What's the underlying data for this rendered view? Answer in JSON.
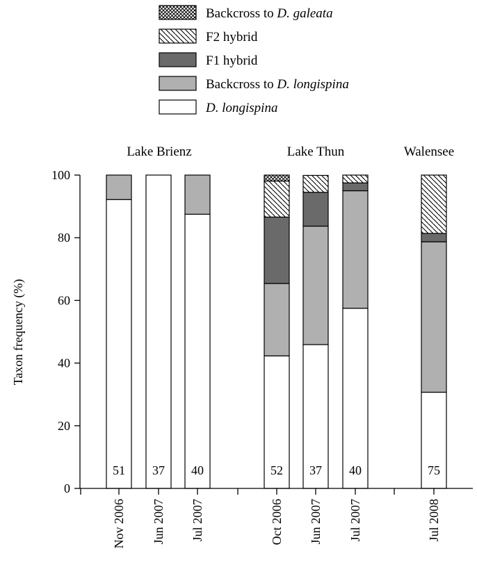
{
  "chart_data": {
    "type": "bar",
    "stacked": true,
    "title": "",
    "xlabel": "",
    "ylabel": "Taxon frequency (%)",
    "ylim": [
      0,
      100
    ],
    "yticks": [
      0,
      20,
      40,
      60,
      80,
      100
    ],
    "grid": false,
    "legend_position": "top",
    "group_labels": [
      "Lake Brienz",
      "Lake Thun",
      "Walensee"
    ],
    "categories": [
      "Nov 2006",
      "Jun 2007",
      "Jul 2007",
      "Oct 2006",
      "Jun 2007",
      "Jul 2007",
      "Jul 2008"
    ],
    "category_groups": [
      0,
      0,
      0,
      1,
      1,
      1,
      2
    ],
    "sample_sizes": [
      "51",
      "37",
      "40",
      "52",
      "37",
      "40",
      "75"
    ],
    "series": [
      {
        "name": "D. longispina",
        "fill": "white",
        "values": [
          92.2,
          100,
          87.5,
          42.3,
          45.9,
          57.5,
          30.7
        ]
      },
      {
        "name": "Backcross to D. longispina",
        "fill": "lightgray",
        "values": [
          7.8,
          0,
          12.5,
          23.1,
          37.8,
          37.5,
          48.0
        ]
      },
      {
        "name": "F1 hybrid",
        "fill": "darkgray",
        "values": [
          0,
          0,
          0,
          21.2,
          10.8,
          2.5,
          2.7
        ]
      },
      {
        "name": "F2 hybrid",
        "fill": "hatch",
        "values": [
          0,
          0,
          0,
          11.5,
          5.4,
          2.5,
          18.6
        ]
      },
      {
        "name": "Backcross to D. galeata",
        "fill": "crosshatch",
        "values": [
          0,
          0,
          0,
          1.9,
          0,
          0,
          0
        ]
      }
    ],
    "legend": [
      {
        "prefix": "Backcross to ",
        "italic": "D. galeata"
      },
      {
        "prefix": "F2 hybrid",
        "italic": ""
      },
      {
        "prefix": "F1 hybrid",
        "italic": ""
      },
      {
        "prefix": "Backcross to ",
        "italic": "D. longispina"
      },
      {
        "prefix": "",
        "italic": "D. longispina"
      }
    ],
    "colors": {
      "white": "#ffffff",
      "lightgray": "#b0b0b0",
      "darkgray": "#6a6a6a",
      "stroke": "#000000"
    }
  }
}
